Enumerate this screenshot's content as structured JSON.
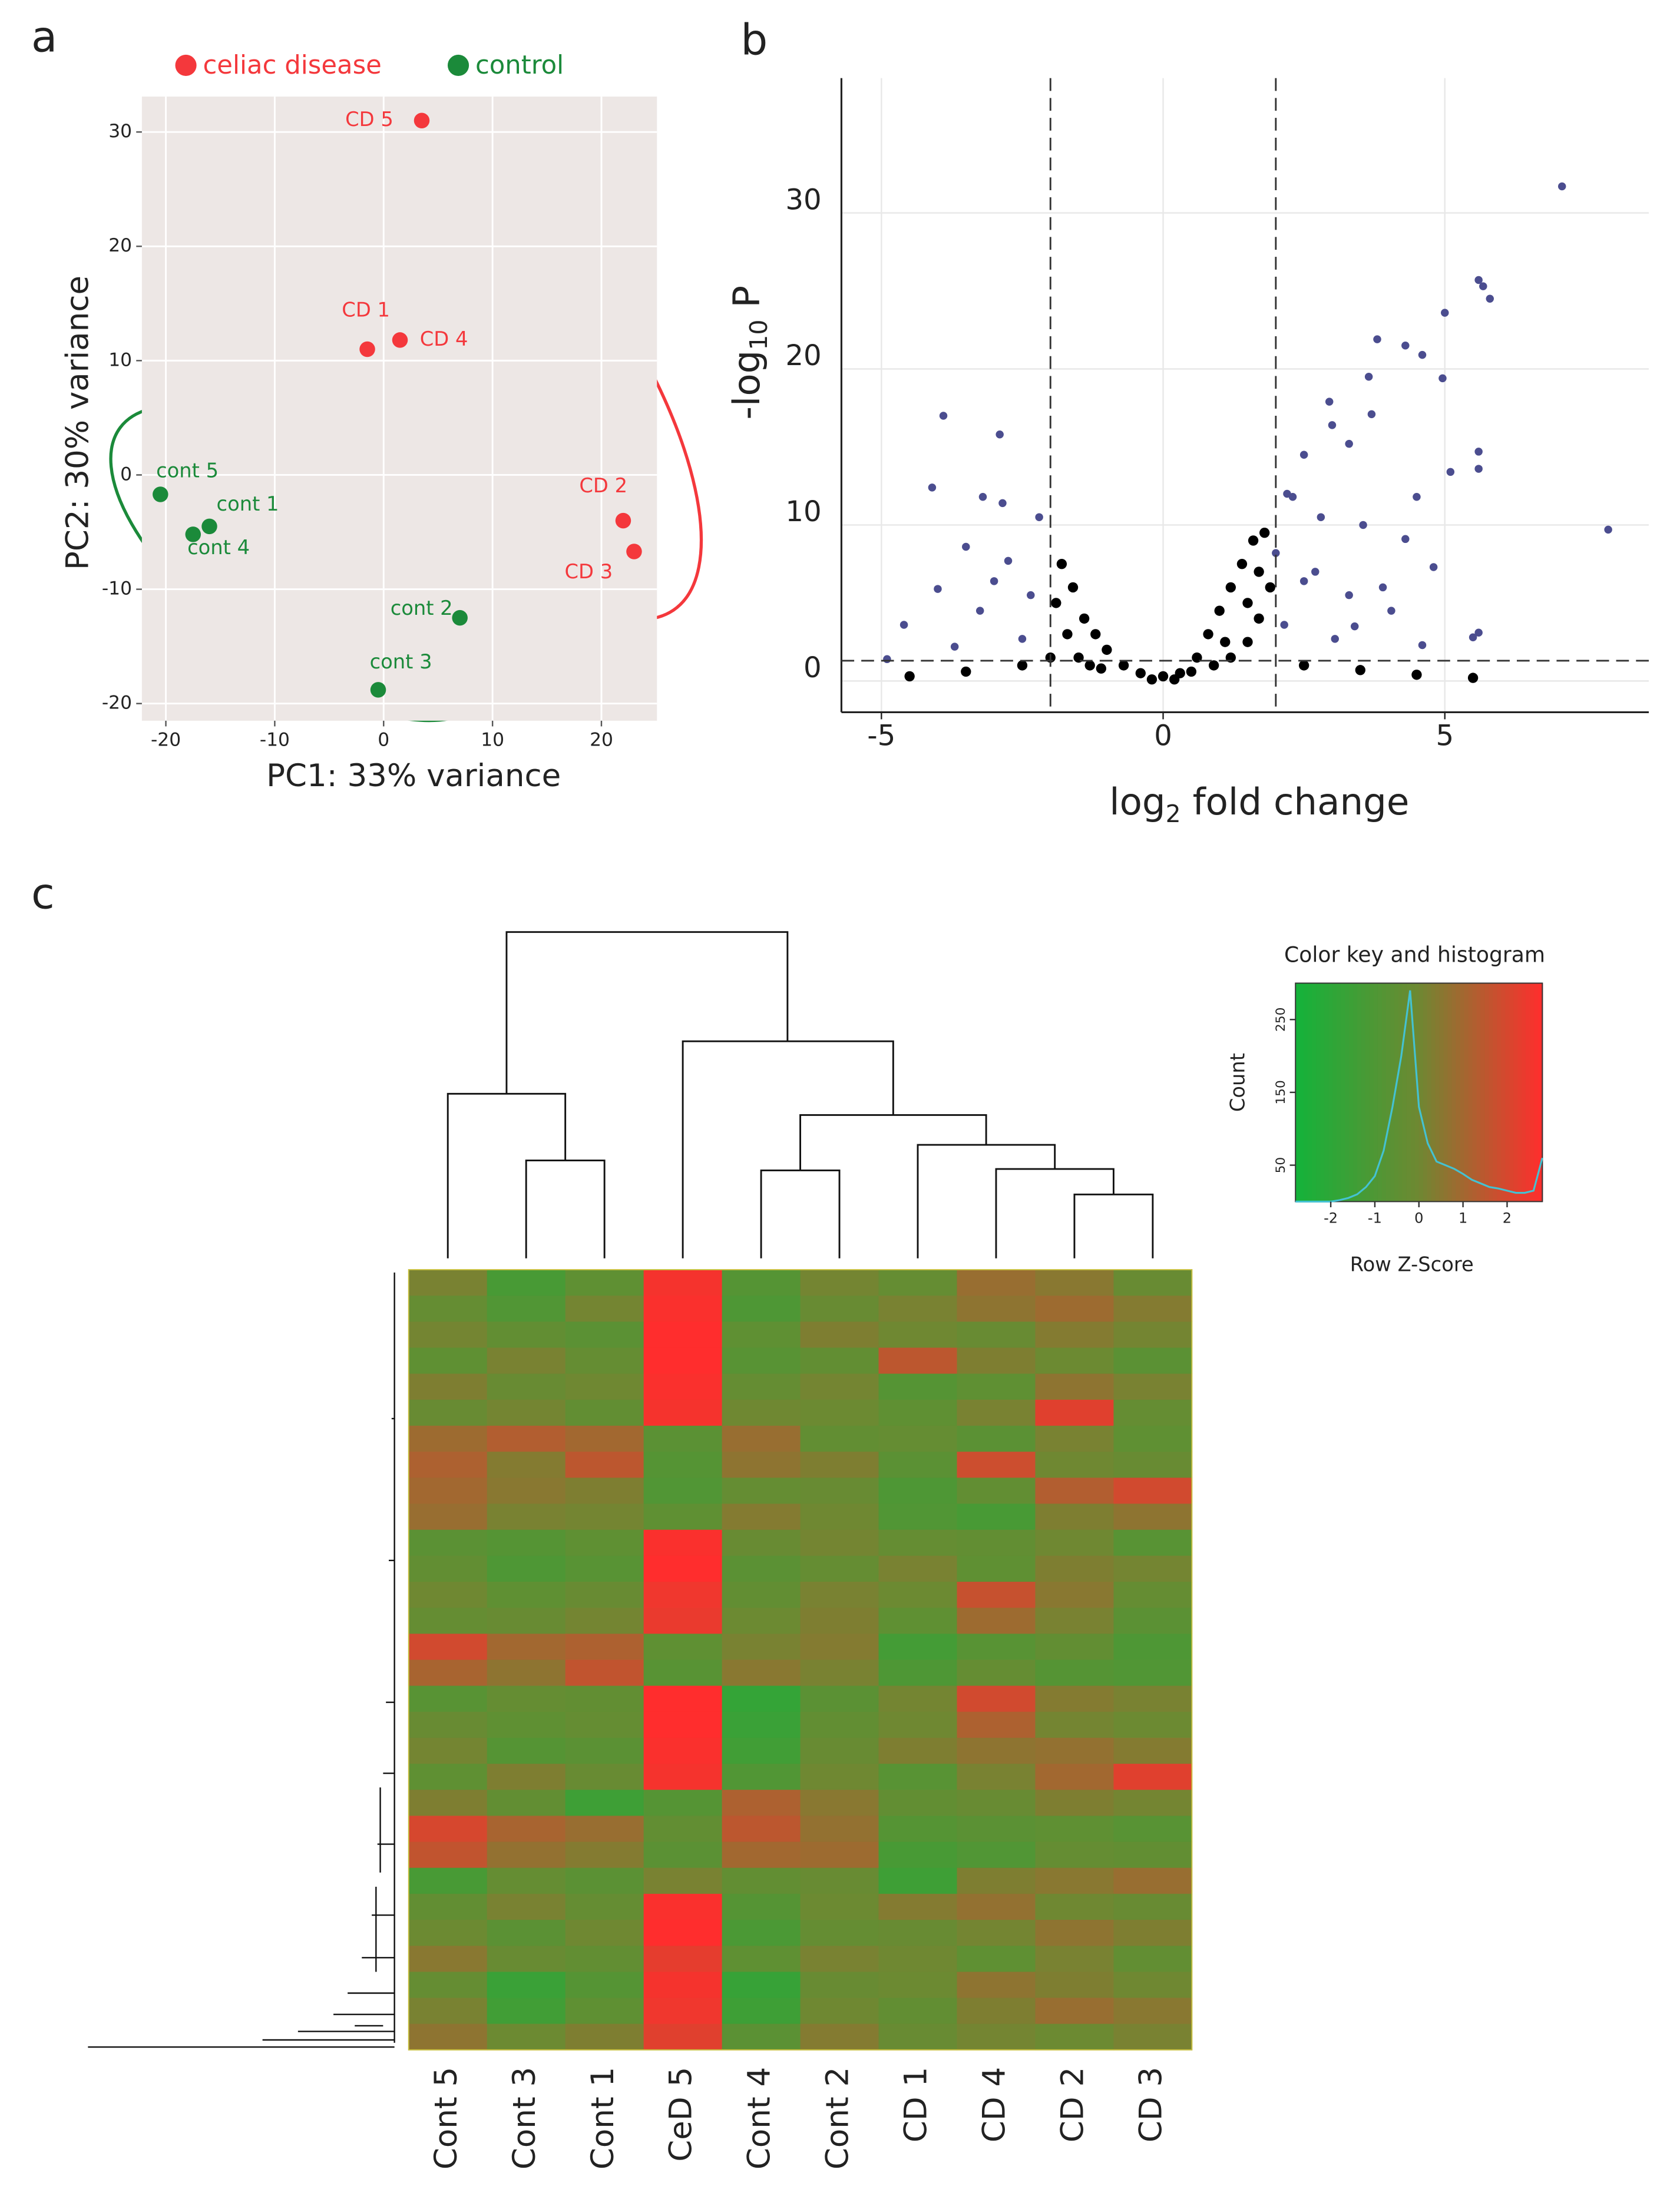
{
  "chart_data": [
    {
      "type": "scatter",
      "panel": "a",
      "x_label": "PC1: 33% variance",
      "y_label": "PC2: 30% variance",
      "xlim": [
        -22.2,
        25.1
      ],
      "ylim": [
        -21.5,
        33.1
      ],
      "xticks": [
        -20,
        -10,
        0,
        10,
        20
      ],
      "yticks": [
        -20,
        -10,
        0,
        10,
        20,
        30
      ],
      "grid": true,
      "background": "#ede7e5",
      "legend": "top",
      "series": [
        {
          "name": "celiac disease",
          "color": "#f4383c",
          "x": [
            3.5,
            -1.5,
            1.5,
            22,
            23
          ],
          "values": [
            31,
            11,
            11.8,
            -4,
            -6.7
          ],
          "labels": [
            "CD 5",
            "CD 1",
            "CD 4",
            "CD 2",
            "CD 3"
          ]
        },
        {
          "name": "control",
          "color": "#1b8a3a",
          "x": [
            -20.5,
            -16,
            -17.5,
            7,
            -0.5
          ],
          "values": [
            -1.7,
            -4.5,
            -5.2,
            -12.5,
            -18.8
          ],
          "labels": [
            "cont 5",
            "cont 1",
            "cont 4",
            "cont 2",
            "cont 3"
          ]
        }
      ]
    },
    {
      "type": "volcano",
      "panel": "b",
      "x_label_parts": [
        "log",
        "2",
        " fold change"
      ],
      "y_label_parts": [
        "-log",
        "10",
        " P"
      ],
      "xlim": [
        -5.71,
        8.62
      ],
      "ylim": [
        -2,
        38.64
      ],
      "xticks": [
        -5,
        0,
        5
      ],
      "yticks": [
        0,
        10,
        20,
        30
      ],
      "grid": true,
      "thresholds": {
        "x": [
          -2,
          2
        ],
        "y": 1.3
      },
      "series": [
        {
          "color": "#4b4d8f",
          "x": [
            7.08,
            7.9,
            5.6,
            5.68,
            5.8,
            5.0,
            3.8,
            4.3,
            4.6,
            3.65,
            4.96,
            2.95,
            3.7,
            5.6,
            5.6,
            5.1,
            5.6,
            5.5,
            3.0,
            3.3,
            2.5,
            2.3,
            2.8,
            3.55,
            4.3,
            4.8,
            2.0,
            2.5,
            3.3,
            4.05,
            2.15,
            3.05,
            4.6,
            4.5,
            2.7,
            3.9,
            2.2,
            3.4,
            -3.9,
            -2.9,
            -4.1,
            -3.2,
            -2.85,
            -3.5,
            -2.75,
            -4.6,
            -4.9,
            -4.0,
            -3.25,
            -2.5,
            -3.0,
            -2.35,
            -2.2,
            -3.7
          ],
          "values": [
            31.7,
            9.7,
            25.7,
            25.3,
            24.5,
            23.6,
            21.9,
            21.5,
            20.9,
            19.5,
            19.4,
            17.9,
            17.1,
            14.7,
            13.6,
            13.4,
            3.1,
            2.8,
            16.4,
            15.2,
            14.5,
            11.8,
            10.5,
            10,
            9.1,
            7.3,
            8.2,
            6.4,
            5.5,
            4.5,
            3.6,
            2.7,
            2.3,
            11.8,
            7.0,
            6.0,
            12.0,
            3.5,
            17,
            15.8,
            12.4,
            11.8,
            11.4,
            8.6,
            7.7,
            3.6,
            1.4,
            5.9,
            4.5,
            2.7,
            6.4,
            5.5,
            10.5,
            2.2
          ]
        },
        {
          "color": "#000000",
          "x": [
            -1.8,
            -1.6,
            -1.9,
            -1.4,
            -1.2,
            -1.0,
            -0.7,
            -0.4,
            0,
            0.3,
            0.6,
            0.8,
            1.0,
            1.2,
            1.4,
            1.6,
            1.8,
            1.9,
            1.7,
            1.5,
            -2.5,
            -3.5,
            -4.5,
            2.5,
            3.5,
            4.5,
            5.5,
            -1.5,
            1.2,
            -0.2,
            0.2,
            -1.7,
            -1.3,
            0.9,
            1.1,
            1.5,
            1.7,
            -2.0,
            -1.1,
            0.5
          ],
          "values": [
            7.5,
            6,
            5,
            4,
            3,
            2,
            1,
            0.5,
            0.3,
            0.5,
            1.5,
            3,
            4.5,
            6,
            7.5,
            9,
            9.5,
            6,
            4,
            2.5,
            1.0,
            0.6,
            0.3,
            1,
            0.7,
            0.4,
            0.2,
            1.5,
            1.5,
            0.1,
            0.1,
            3,
            1,
            1,
            2.5,
            5,
            7,
            1.5,
            0.8,
            0.6
          ]
        }
      ]
    },
    {
      "type": "heatmap",
      "panel": "c",
      "columns": [
        "Cont 5",
        "Cont 3",
        "Cont 1",
        "CeD 5",
        "Cont 4",
        "Cont 2",
        "CD 1",
        "CD 4",
        "CD 2",
        "CD 3"
      ],
      "zlim": [
        -2.8,
        2.8
      ],
      "colorscale": [
        "#13b33a",
        "#6f8832",
        "#ff2d2d"
      ],
      "values": [
        [
          0.2,
          -1.2,
          -0.5,
          2.6,
          -0.8,
          0.1,
          -0.3,
          0.8,
          0.5,
          -0.2
        ],
        [
          -0.3,
          -0.9,
          0.1,
          2.7,
          -1.0,
          -0.2,
          0.2,
          0.6,
          0.9,
          0.4
        ],
        [
          0.1,
          -0.4,
          -0.6,
          2.8,
          -0.5,
          0.3,
          0.0,
          -0.2,
          0.4,
          0.1
        ],
        [
          -0.5,
          0.2,
          -0.3,
          2.8,
          -0.7,
          -0.4,
          1.5,
          0.3,
          -0.1,
          -0.6
        ],
        [
          0.3,
          -0.2,
          0.0,
          2.7,
          -0.3,
          0.1,
          -0.8,
          -0.5,
          0.6,
          0.2
        ],
        [
          -0.2,
          0.1,
          -0.4,
          2.6,
          0.0,
          -0.1,
          -0.5,
          0.2,
          2.2,
          -0.3
        ],
        [
          0.9,
          1.3,
          1.0,
          -0.6,
          0.8,
          -0.4,
          -0.3,
          -0.6,
          0.2,
          -0.5
        ],
        [
          1.2,
          0.4,
          1.5,
          -0.8,
          0.6,
          0.3,
          -0.6,
          1.8,
          0.0,
          -0.2
        ],
        [
          1.0,
          0.5,
          0.3,
          -0.9,
          -0.3,
          -0.2,
          -1.0,
          -0.4,
          1.3,
          1.9
        ],
        [
          0.8,
          0.2,
          0.1,
          -0.5,
          0.4,
          0.0,
          -0.9,
          -1.2,
          0.3,
          0.6
        ],
        [
          -0.6,
          -0.8,
          -0.5,
          2.7,
          -0.2,
          0.1,
          -0.3,
          -0.4,
          0.0,
          -0.7
        ],
        [
          -0.4,
          -1.0,
          -0.7,
          2.8,
          -0.6,
          -0.3,
          0.2,
          -0.5,
          0.3,
          0.1
        ],
        [
          0.0,
          -0.5,
          -0.2,
          2.5,
          -0.4,
          0.2,
          -0.1,
          1.7,
          0.5,
          -0.3
        ],
        [
          -0.3,
          -0.2,
          0.1,
          2.4,
          -0.1,
          0.3,
          -0.5,
          0.9,
          0.2,
          -0.6
        ],
        [
          1.9,
          1.0,
          1.2,
          -0.5,
          0.2,
          0.4,
          -1.3,
          -0.7,
          -0.4,
          -1.0
        ],
        [
          1.1,
          0.6,
          1.6,
          -0.7,
          0.5,
          0.2,
          -1.0,
          -0.3,
          -0.8,
          -0.9
        ],
        [
          -0.7,
          -0.3,
          -0.4,
          2.8,
          -1.8,
          -0.6,
          0.1,
          1.9,
          0.4,
          0.2
        ],
        [
          -0.2,
          -0.5,
          -0.3,
          2.8,
          -1.6,
          -0.4,
          0.0,
          1.2,
          0.1,
          -0.1
        ],
        [
          0.1,
          -0.8,
          -0.6,
          2.7,
          -1.4,
          -0.2,
          0.3,
          0.6,
          0.7,
          0.4
        ],
        [
          -0.5,
          0.3,
          -0.2,
          2.6,
          -0.9,
          0.0,
          -0.7,
          0.2,
          1.0,
          2.2
        ],
        [
          0.3,
          -0.4,
          -1.5,
          -0.8,
          1.2,
          0.5,
          -0.4,
          -0.2,
          0.3,
          0.1
        ],
        [
          2.0,
          1.1,
          0.8,
          -0.4,
          1.5,
          0.7,
          -0.8,
          -0.6,
          -0.5,
          -0.7
        ],
        [
          1.6,
          0.7,
          0.4,
          -0.6,
          1.0,
          0.9,
          -1.2,
          -0.9,
          -0.3,
          -0.4
        ],
        [
          -1.2,
          -0.3,
          -0.6,
          0.2,
          -0.4,
          -0.2,
          -1.5,
          0.3,
          0.5,
          0.8
        ],
        [
          -0.4,
          0.2,
          -0.3,
          2.7,
          -0.8,
          -0.1,
          0.4,
          0.7,
          0.0,
          -0.2
        ],
        [
          -0.1,
          -0.6,
          0.0,
          2.8,
          -1.1,
          -0.3,
          -0.2,
          0.1,
          0.6,
          0.3
        ],
        [
          0.5,
          -0.2,
          -0.4,
          2.3,
          -0.5,
          0.2,
          0.0,
          -0.5,
          0.2,
          -0.4
        ],
        [
          -0.3,
          -1.6,
          -0.8,
          2.6,
          -1.7,
          -0.2,
          -0.1,
          0.6,
          0.3,
          0.0
        ],
        [
          0.2,
          -1.4,
          -0.5,
          2.5,
          -1.5,
          0.0,
          -0.4,
          0.3,
          0.8,
          0.5
        ],
        [
          0.6,
          -0.1,
          0.3,
          2.2,
          -0.6,
          0.4,
          -0.2,
          0.1,
          -0.1,
          0.2
        ]
      ]
    },
    {
      "type": "histogram-line",
      "title": "Color key and histogram",
      "x_label": "Row Z-Score",
      "y_label": "Count",
      "xlim": [
        -2.8,
        2.8
      ],
      "ylim": [
        0,
        300
      ],
      "xticks": [
        -2,
        -1,
        0,
        1,
        2
      ],
      "yticks": [
        50,
        150,
        250
      ],
      "color": "#44c2d2",
      "x": [
        -2.8,
        -2.6,
        -2.4,
        -2.2,
        -2.0,
        -1.8,
        -1.6,
        -1.4,
        -1.2,
        -1.0,
        -0.8,
        -0.6,
        -0.4,
        -0.2,
        0,
        0.2,
        0.4,
        0.6,
        0.8,
        1.0,
        1.2,
        1.4,
        1.6,
        1.8,
        2.0,
        2.2,
        2.4,
        2.6,
        2.8
      ],
      "values": [
        0,
        0,
        0,
        0,
        0,
        2,
        5,
        10,
        20,
        35,
        70,
        130,
        200,
        290,
        130,
        80,
        55,
        50,
        45,
        38,
        30,
        25,
        20,
        18,
        15,
        12,
        12,
        15,
        60
      ]
    }
  ]
}
